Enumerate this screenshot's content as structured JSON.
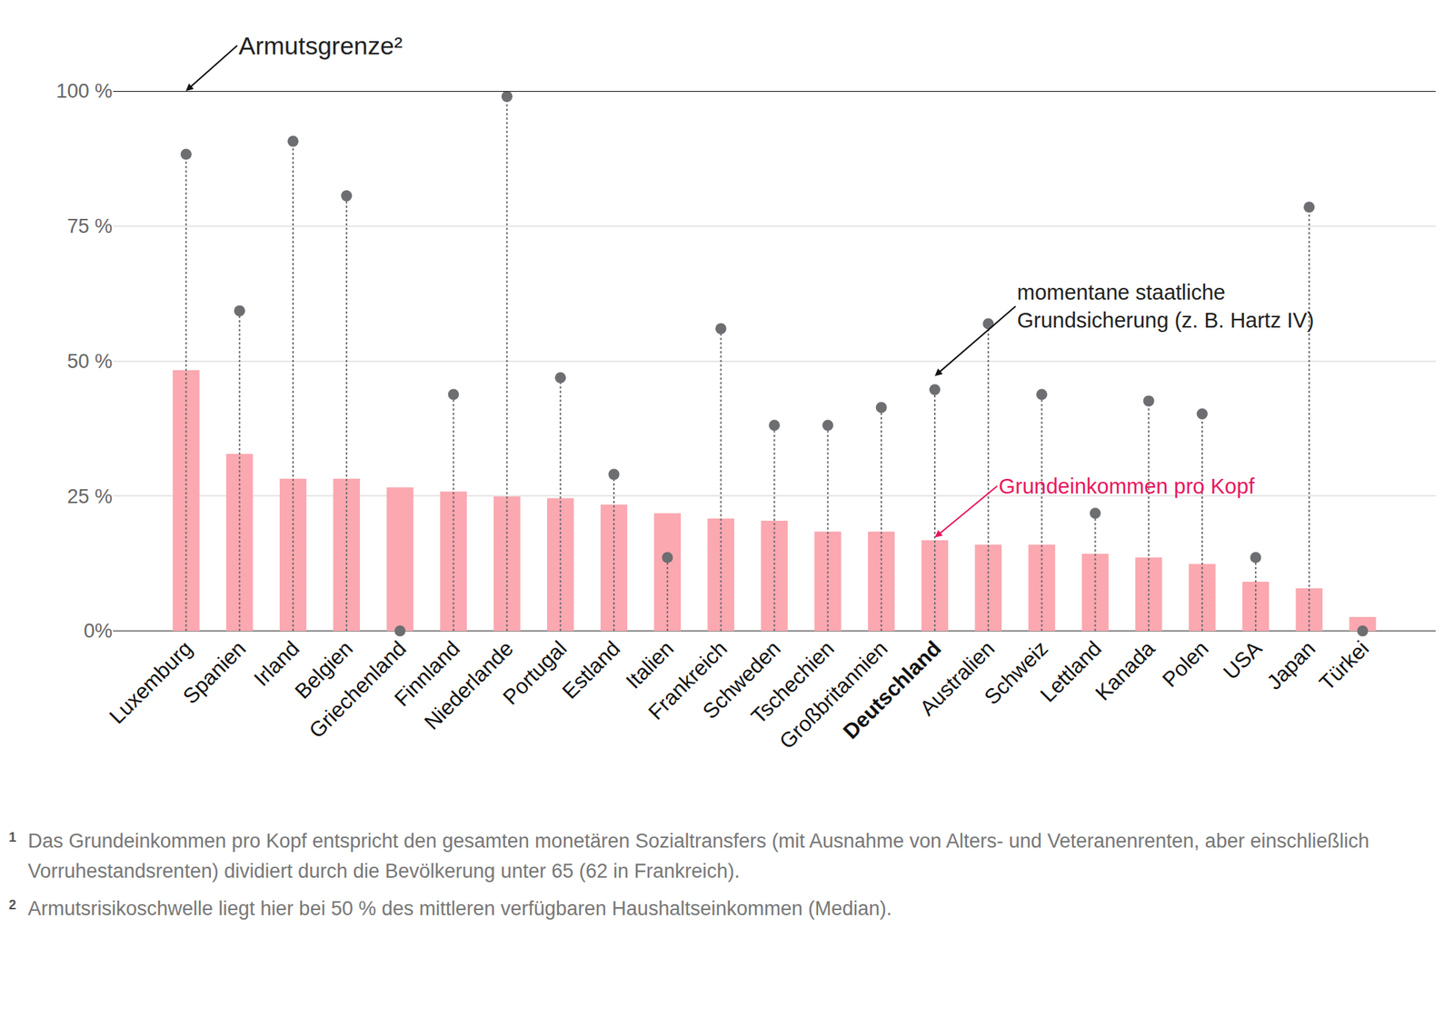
{
  "chart_data": {
    "type": "bar",
    "categories": [
      "Luxemburg",
      "Spanien",
      "Irland",
      "Belgien",
      "Griechenland",
      "Finnland",
      "Niederlande",
      "Portugal",
      "Estland",
      "Italien",
      "Frankreich",
      "Schweden",
      "Tschechien",
      "Großbritannien",
      "Deutschland",
      "Australien",
      "Schweiz",
      "Lettland",
      "Kanada",
      "Polen",
      "USA",
      "Japan",
      "Türkei"
    ],
    "series": [
      {
        "name": "Grundeinkommen pro Kopf",
        "type": "bar",
        "color": "#fba8b0",
        "values": [
          48.3,
          32.8,
          28.2,
          28.2,
          26.6,
          25.8,
          24.9,
          24.6,
          23.4,
          21.8,
          20.8,
          20.4,
          18.4,
          18.4,
          16.8,
          16.0,
          16.0,
          14.3,
          13.6,
          12.4,
          9.1,
          7.9,
          2.6
        ]
      },
      {
        "name": "momentane staatliche Grundsicherung (z. B. Hartz IV)",
        "type": "scatter",
        "color": "#6d6e71",
        "marker": "circle",
        "line_style": "dotted",
        "values": [
          88.3,
          59.3,
          90.7,
          80.6,
          0,
          43.8,
          99.0,
          46.9,
          29.0,
          13.6,
          56.0,
          38.1,
          38.1,
          41.4,
          44.7,
          56.9,
          43.8,
          21.8,
          42.6,
          40.2,
          13.6,
          78.5,
          0
        ]
      }
    ],
    "ylim": [
      0,
      100
    ],
    "yticks": [
      {
        "value": 0,
        "label": "0%"
      },
      {
        "value": 25,
        "label": "25 %"
      },
      {
        "value": 50,
        "label": "50 %"
      },
      {
        "value": 75,
        "label": "75 %"
      },
      {
        "value": 100,
        "label": "100 %"
      }
    ],
    "grid": true,
    "annotations": [
      {
        "text": "Armutsgrenze²",
        "value": 100
      }
    ],
    "footnotes": [
      {
        "mark": "1",
        "text": "Das Grundeinkommen pro Kopf entspricht den gesamten monetären Sozialtransfers (mit Ausnahme von Alters- und Veteranenrenten, aber einschließlich Vorruhestandsrenten) dividiert durch die Bevölkerung unter 65 (62 in Frankreich)."
      },
      {
        "mark": "2",
        "text": "Armutsrisikoschwelle liegt hier bei 50 % des mittleren verfügbaren Haushaltseinkommen (Median)."
      }
    ]
  }
}
